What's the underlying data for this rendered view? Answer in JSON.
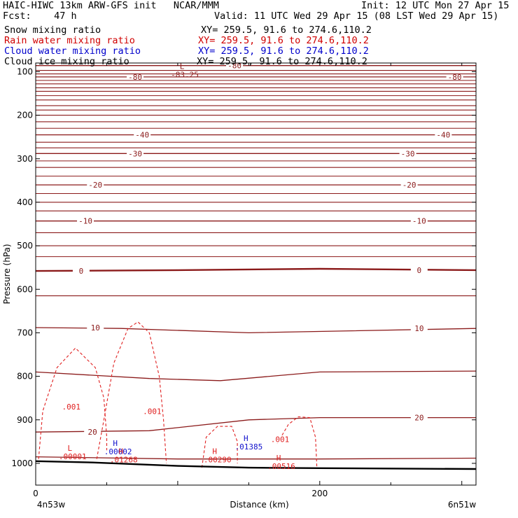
{
  "header": {
    "title": "HAIC-HIWC 13km ARW-GFS init   NCAR/MMM",
    "init": "Init: 12 UTC Mon 27 Apr 15",
    "fcst": "Fcst:    47 h",
    "valid": "Valid: 11 UTC Wed 29 Apr 15 (08 LST Wed 29 Apr 15)",
    "fields": [
      {
        "name": "Snow mixing ratio",
        "xy": "XY= 259.5, 91.6 to 274.6,110.2",
        "color": "#000000"
      },
      {
        "name": "Rain water mixing ratio",
        "xy": "XY= 259.5, 91.6 to 274.6,110.2",
        "color": "#d00000"
      },
      {
        "name": "Cloud water mixing ratio",
        "xy": "XY= 259.5, 91.6 to 274.6,110.2",
        "color": "#0000cc"
      },
      {
        "name": "Cloud ice mixing ratio",
        "xy": "XY= 259.5, 91.6 to 274.6,110.2",
        "color": "#000000"
      }
    ]
  },
  "chart_data": {
    "type": "line",
    "xlabel": "Distance (km)",
    "ylabel": "Pressure (hPa)",
    "xlim": [
      0,
      310
    ],
    "ylim": [
      1050,
      80
    ],
    "x_ticks": [
      0,
      200
    ],
    "y_ticks": [
      100,
      200,
      300,
      400,
      500,
      600,
      700,
      800,
      900,
      1000
    ],
    "x_end_labels": {
      "left": "4n53w",
      "right": "6n51w"
    },
    "colors": {
      "temperature": "#8b1a1a",
      "rain": "#e02020",
      "cloud_water": "#1010cc",
      "terrain": "#000000"
    },
    "terrain": [
      [
        0,
        995
      ],
      [
        40,
        998
      ],
      [
        100,
        1006
      ],
      [
        150,
        1010
      ],
      [
        200,
        1011
      ],
      [
        310,
        1013
      ]
    ],
    "isotherms": [
      {
        "label": "-80",
        "points": [
          [
            0,
            112
          ],
          [
            310,
            112
          ]
        ],
        "labels_at": [
          [
            70,
            112
          ],
          [
            295,
            112
          ]
        ]
      },
      {
        "label": "-80",
        "points": [
          [
            0,
            86
          ],
          [
            310,
            86
          ]
        ],
        "labels_at": [
          [
            140,
            86
          ]
        ]
      },
      {
        "label": "-40",
        "points": [
          [
            0,
            245
          ],
          [
            310,
            245
          ]
        ],
        "labels_at": [
          [
            75,
            245
          ],
          [
            287,
            245
          ]
        ]
      },
      {
        "label": "-30",
        "points": [
          [
            0,
            288
          ],
          [
            310,
            288
          ]
        ],
        "labels_at": [
          [
            70,
            288
          ],
          [
            262,
            288
          ]
        ]
      },
      {
        "label": "-20",
        "points": [
          [
            0,
            360
          ],
          [
            310,
            360
          ]
        ],
        "labels_at": [
          [
            42,
            360
          ],
          [
            263,
            360
          ]
        ]
      },
      {
        "label": "-10",
        "points": [
          [
            0,
            443
          ],
          [
            310,
            443
          ]
        ],
        "labels_at": [
          [
            35,
            443
          ],
          [
            270,
            443
          ]
        ]
      },
      {
        "label": "0",
        "points": [
          [
            0,
            558
          ],
          [
            100,
            556
          ],
          [
            200,
            553
          ],
          [
            310,
            556
          ]
        ],
        "labels_at": [
          [
            32,
            558
          ],
          [
            270,
            556
          ]
        ]
      },
      {
        "label": "10",
        "points": [
          [
            0,
            688
          ],
          [
            60,
            690
          ],
          [
            150,
            700
          ],
          [
            310,
            690
          ]
        ],
        "labels_at": [
          [
            42,
            688
          ],
          [
            270,
            690
          ]
        ]
      },
      {
        "label": "",
        "points": [
          [
            0,
            790
          ],
          [
            80,
            805
          ],
          [
            130,
            810
          ],
          [
            200,
            790
          ],
          [
            310,
            788
          ]
        ],
        "labels_at": []
      },
      {
        "label": "20",
        "points": [
          [
            0,
            928
          ],
          [
            80,
            925
          ],
          [
            150,
            900
          ],
          [
            200,
            895
          ],
          [
            310,
            895
          ]
        ],
        "labels_at": [
          [
            40,
            928
          ],
          [
            270,
            895
          ]
        ]
      },
      {
        "label": "",
        "points": [
          [
            0,
            985
          ],
          [
            100,
            990
          ],
          [
            200,
            990
          ],
          [
            310,
            988
          ]
        ],
        "labels_at": []
      }
    ],
    "rain_contours": [
      {
        "label": ".001",
        "points": [
          [
            2,
            990
          ],
          [
            5,
            880
          ],
          [
            15,
            780
          ],
          [
            28,
            735
          ],
          [
            42,
            780
          ],
          [
            48,
            850
          ],
          [
            50,
            940
          ],
          [
            50,
            970
          ]
        ],
        "label_at": [
          25,
          870
        ]
      },
      {
        "label": ".001",
        "points": [
          [
            43,
            990
          ],
          [
            48,
            900
          ],
          [
            55,
            770
          ],
          [
            65,
            690
          ],
          [
            72,
            675
          ],
          [
            80,
            700
          ],
          [
            87,
            800
          ],
          [
            90,
            900
          ],
          [
            92,
            1000
          ]
        ],
        "label_at": [
          82,
          880
        ]
      },
      {
        "label": "",
        "points": [
          [
            117,
            1010
          ],
          [
            120,
            940
          ],
          [
            128,
            915
          ],
          [
            138,
            915
          ],
          [
            142,
            950
          ],
          [
            142,
            1000
          ]
        ],
        "label_at": null
      },
      {
        "label": ".001",
        "points": [
          [
            170,
            955
          ],
          [
            178,
            910
          ],
          [
            185,
            893
          ],
          [
            193,
            895
          ],
          [
            197,
            940
          ],
          [
            198,
            1010
          ]
        ],
        "label_at": [
          172,
          945
        ]
      }
    ],
    "extrema": [
      {
        "type": "L",
        "value": "-83.25",
        "x": 105,
        "y": 100,
        "color": "#8b1a1a"
      },
      {
        "type": "L",
        "value": ".00001",
        "x": 26,
        "y": 978,
        "color": "#e02020"
      },
      {
        "type": "H",
        "value": ".00002",
        "x": 58,
        "y": 966,
        "color": "#1010cc"
      },
      {
        "type": "H",
        "value": ".01268",
        "x": 62,
        "y": 985,
        "color": "#e02020"
      },
      {
        "type": "H",
        "value": ".00290",
        "x": 128,
        "y": 985,
        "color": "#e02020"
      },
      {
        "type": "H",
        "value": ".01385",
        "x": 150,
        "y": 955,
        "color": "#1010cc"
      },
      {
        "type": "H",
        "value": ".00516",
        "x": 173,
        "y": 1000,
        "color": "#e02020"
      }
    ]
  }
}
